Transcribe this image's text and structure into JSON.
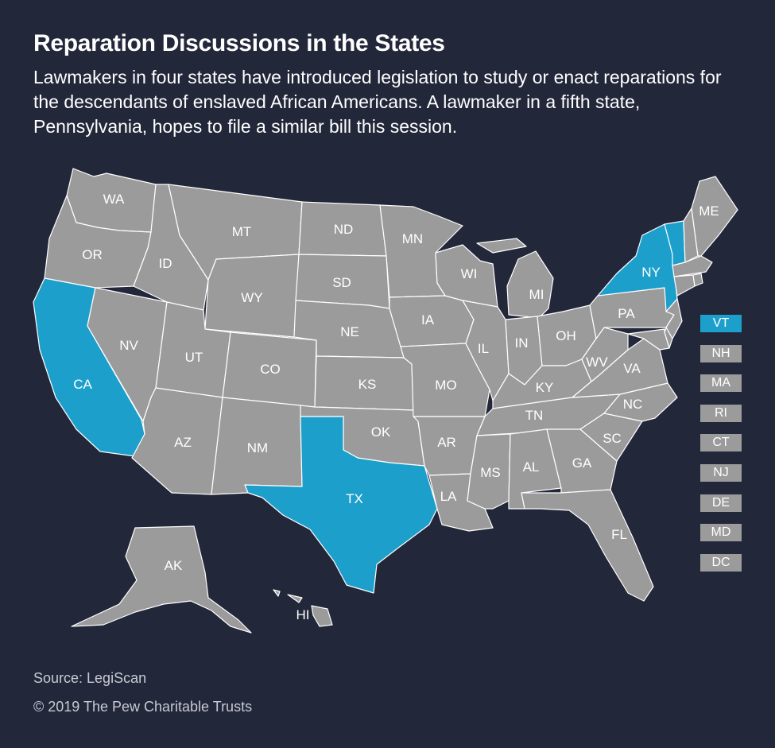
{
  "title": "Reparation Discussions in the States",
  "subtitle": "Lawmakers in four states have introduced legislation to study or enact reparations for the descendants of enslaved African Americans. A lawmaker in a fifth state, Pennsylvania, hopes to file a similar bill this session.",
  "colors": {
    "background": "#23273a",
    "highlighted": "#1d9fcb",
    "default": "#9b9b9b",
    "border": "#ffffff"
  },
  "highlighted_states": [
    "CA",
    "TX",
    "NY",
    "VT"
  ],
  "state_labels": [
    "WA",
    "OR",
    "CA",
    "NV",
    "ID",
    "MT",
    "WY",
    "UT",
    "AZ",
    "CO",
    "NM",
    "ND",
    "SD",
    "NE",
    "KS",
    "OK",
    "TX",
    "MN",
    "IA",
    "MO",
    "AR",
    "LA",
    "WI",
    "IL",
    "MI",
    "IN",
    "OH",
    "KY",
    "TN",
    "MS",
    "AL",
    "GA",
    "FL",
    "SC",
    "NC",
    "VA",
    "WV",
    "PA",
    "NY",
    "ME",
    "AK",
    "HI"
  ],
  "legend": [
    {
      "code": "VT",
      "highlighted": true
    },
    {
      "code": "NH",
      "highlighted": false
    },
    {
      "code": "MA",
      "highlighted": false
    },
    {
      "code": "RI",
      "highlighted": false
    },
    {
      "code": "CT",
      "highlighted": false
    },
    {
      "code": "NJ",
      "highlighted": false
    },
    {
      "code": "DE",
      "highlighted": false
    },
    {
      "code": "MD",
      "highlighted": false
    },
    {
      "code": "DC",
      "highlighted": false
    }
  ],
  "source": "Source: LegiScan",
  "copyright": "© 2019 The Pew Charitable Trusts"
}
